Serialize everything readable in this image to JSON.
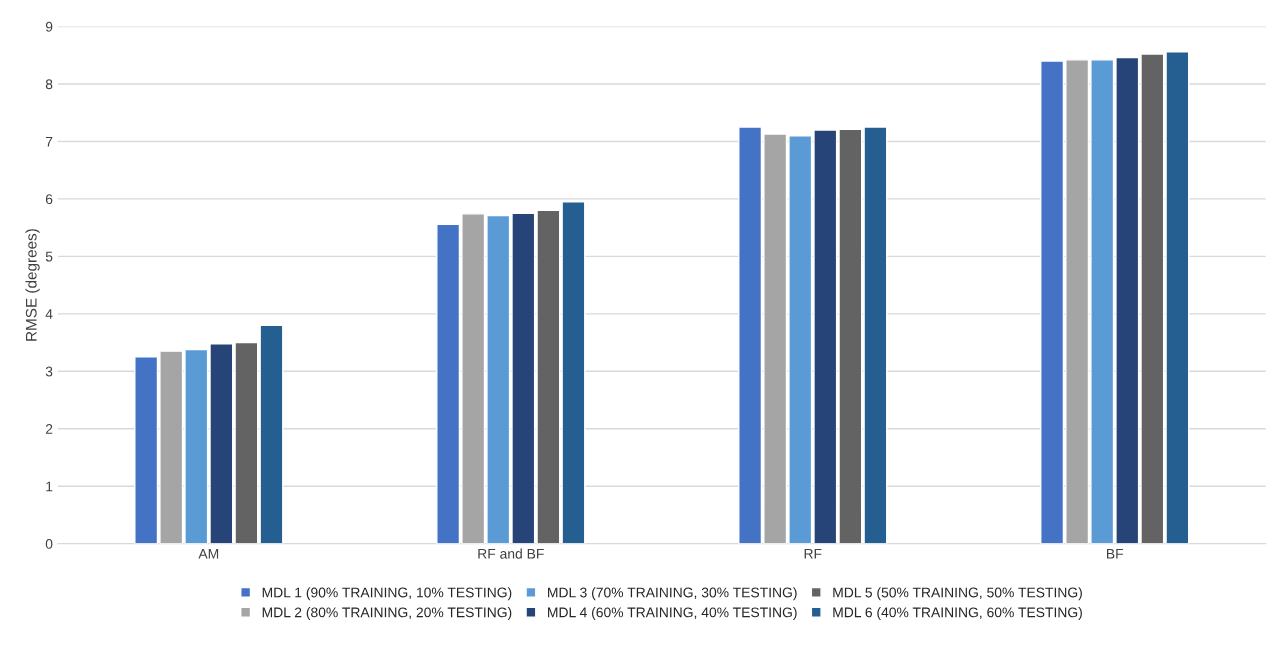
{
  "chart_data": {
    "type": "bar",
    "ylabel": "RMSE (degrees)",
    "categories": [
      "AM",
      "RF and BF",
      "RF",
      "BF"
    ],
    "series": [
      {
        "name": "MDL 1 (90% TRAINING, 10% TESTING)",
        "color": "#4472c4",
        "values": [
          3.25,
          5.56,
          7.25,
          8.4
        ]
      },
      {
        "name": "MDL 2 (80% TRAINING, 20% TESTING)",
        "color": "#a5a5a5",
        "values": [
          3.35,
          5.74,
          7.13,
          8.42
        ]
      },
      {
        "name": "MDL 3 (70% TRAINING, 30% TESTING)",
        "color": "#5b9bd5",
        "values": [
          3.38,
          5.71,
          7.1,
          8.42
        ]
      },
      {
        "name": "MDL 4 (60% TRAINING, 40% TESTING)",
        "color": "#264478",
        "values": [
          3.48,
          5.75,
          7.2,
          8.46
        ]
      },
      {
        "name": "MDL 5 (50% TRAINING, 50% TESTING)",
        "color": "#636363",
        "values": [
          3.5,
          5.8,
          7.21,
          8.52
        ]
      },
      {
        "name": "MDL 6 (40% TRAINING, 60% TESTING)",
        "color": "#255e91",
        "values": [
          3.8,
          5.95,
          7.25,
          8.56
        ]
      }
    ],
    "ylim": [
      0,
      9
    ],
    "yticks": [
      0,
      1,
      2,
      3,
      4,
      5,
      6,
      7,
      8,
      9
    ],
    "grid": "y",
    "legend": "bottom"
  }
}
